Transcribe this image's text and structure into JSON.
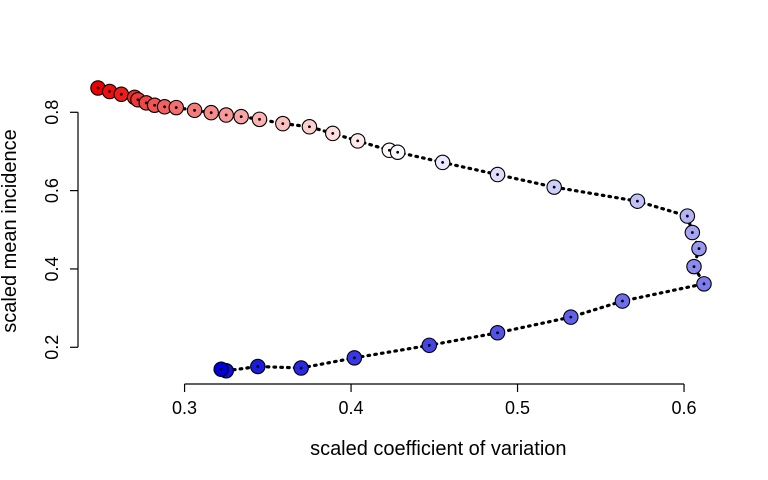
{
  "chart_data": {
    "type": "scatter",
    "title": "",
    "xlabel": "scaled coefficient of variation",
    "ylabel": "scaled mean incidence",
    "xlim": [
      0.248,
      0.612
    ],
    "ylim": [
      0.142,
      0.862
    ],
    "x_ticks": [
      0.3,
      0.4,
      0.5,
      0.6
    ],
    "y_ticks": [
      0.2,
      0.4,
      0.6,
      0.8
    ],
    "grid": false,
    "legend": "none",
    "connector_style": "dotted line through points in sequence (solid between the right-most points)",
    "color_scale": {
      "start": "#ee0000",
      "middle": "#ffffff",
      "end": "#0000dd"
    },
    "series": [
      {
        "points": [
          {
            "x": 0.248,
            "y": 0.862
          },
          {
            "x": 0.255,
            "y": 0.853
          },
          {
            "x": 0.262,
            "y": 0.846
          },
          {
            "x": 0.27,
            "y": 0.838
          },
          {
            "x": 0.272,
            "y": 0.832
          },
          {
            "x": 0.277,
            "y": 0.824
          },
          {
            "x": 0.282,
            "y": 0.818
          },
          {
            "x": 0.288,
            "y": 0.814
          },
          {
            "x": 0.295,
            "y": 0.812
          },
          {
            "x": 0.306,
            "y": 0.805
          },
          {
            "x": 0.316,
            "y": 0.799
          },
          {
            "x": 0.325,
            "y": 0.793
          },
          {
            "x": 0.334,
            "y": 0.789
          },
          {
            "x": 0.345,
            "y": 0.782
          },
          {
            "x": 0.359,
            "y": 0.771
          },
          {
            "x": 0.375,
            "y": 0.763
          },
          {
            "x": 0.389,
            "y": 0.746
          },
          {
            "x": 0.404,
            "y": 0.727
          },
          {
            "x": 0.423,
            "y": 0.703
          },
          {
            "x": 0.428,
            "y": 0.698
          },
          {
            "x": 0.455,
            "y": 0.672
          },
          {
            "x": 0.488,
            "y": 0.641
          },
          {
            "x": 0.522,
            "y": 0.609
          },
          {
            "x": 0.572,
            "y": 0.573
          },
          {
            "x": 0.602,
            "y": 0.535
          },
          {
            "x": 0.605,
            "y": 0.493
          },
          {
            "x": 0.609,
            "y": 0.452
          },
          {
            "x": 0.606,
            "y": 0.406
          },
          {
            "x": 0.612,
            "y": 0.362
          },
          {
            "x": 0.563,
            "y": 0.318
          },
          {
            "x": 0.532,
            "y": 0.277
          },
          {
            "x": 0.488,
            "y": 0.237
          },
          {
            "x": 0.447,
            "y": 0.205
          },
          {
            "x": 0.402,
            "y": 0.173
          },
          {
            "x": 0.37,
            "y": 0.147
          },
          {
            "x": 0.344,
            "y": 0.151
          },
          {
            "x": 0.325,
            "y": 0.14
          },
          {
            "x": 0.322,
            "y": 0.144
          }
        ]
      }
    ]
  }
}
